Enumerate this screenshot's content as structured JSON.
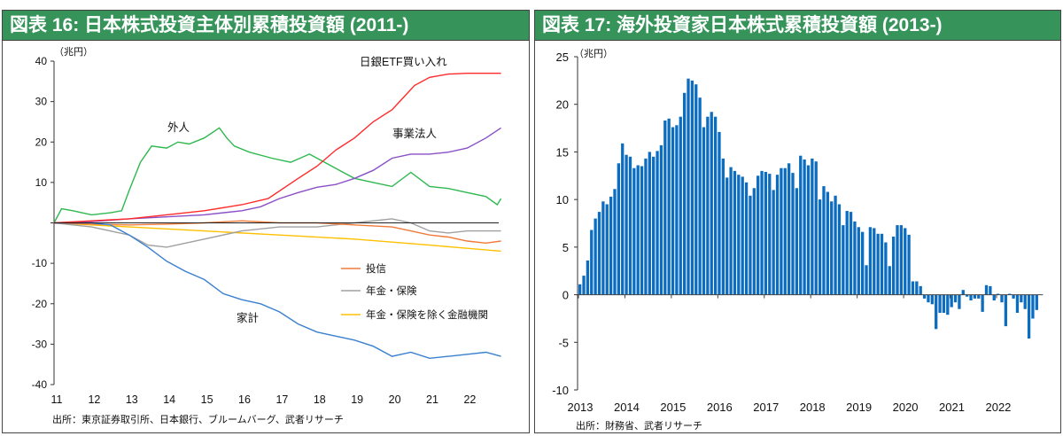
{
  "chart_data": [
    {
      "type": "line",
      "title": "図表 16: 日本株式投資主体別累積投資額 (2011-)",
      "unit_label": "（兆円）",
      "ylim": [
        -40,
        40
      ],
      "yticks": [
        40,
        30,
        20,
        10,
        0,
        -10,
        -20,
        -30,
        -40
      ],
      "ytick_labels": [
        "40",
        "30",
        "20",
        "10",
        "",
        "-10",
        "-20",
        "-30",
        "-40"
      ],
      "xlim": [
        2011,
        2023
      ],
      "xticks": [
        2011,
        2012,
        2013,
        2014,
        2015,
        2016,
        2017,
        2018,
        2019,
        2020,
        2021,
        2022
      ],
      "xtick_labels": [
        "11",
        "12",
        "13",
        "14",
        "15",
        "16",
        "17",
        "18",
        "19",
        "20",
        "21",
        "22"
      ],
      "source": "出所：東京証券取引所、日本銀行、ブルームバーグ、武者リサーチ",
      "series": [
        {
          "name": "日銀ETF買い入れ",
          "color": "#ff2a2a",
          "x": [
            2011,
            2012,
            2013,
            2014,
            2015,
            2016,
            2016.7,
            2017.5,
            2018,
            2018.5,
            2019,
            2019.5,
            2020,
            2020.3,
            2020.6,
            2021,
            2021.5,
            2022,
            2022.9
          ],
          "y": [
            0,
            0.5,
            1,
            2,
            3,
            4.5,
            6,
            11,
            14,
            18,
            21,
            25,
            28,
            31,
            34,
            36,
            36.8,
            37,
            37
          ]
        },
        {
          "name": "事業法人",
          "color": "#8a4fc6",
          "x": [
            2011,
            2012,
            2013,
            2014,
            2015,
            2016,
            2016.5,
            2017,
            2017.5,
            2018,
            2018.5,
            2019,
            2019.5,
            2020,
            2020.5,
            2021,
            2021.5,
            2022,
            2022.5,
            2022.9
          ],
          "y": [
            0,
            0.3,
            1,
            1.5,
            2,
            3,
            4,
            6,
            7.5,
            8.8,
            9.5,
            11,
            13,
            16,
            17,
            17,
            17.5,
            18.5,
            21,
            23.5
          ]
        },
        {
          "name": "外人",
          "color": "#2fb84f",
          "x": [
            2011,
            2011.2,
            2011.5,
            2012,
            2012.5,
            2012.8,
            2013,
            2013.3,
            2013.6,
            2014,
            2014.3,
            2014.6,
            2015,
            2015.4,
            2015.6,
            2015.8,
            2016.2,
            2016.8,
            2017.3,
            2017.8,
            2018.1,
            2018.6,
            2019,
            2019.5,
            2020,
            2020.5,
            2021,
            2021.5,
            2022,
            2022.5,
            2022.8,
            2022.9
          ],
          "y": [
            0,
            3.5,
            3,
            2,
            2.5,
            3,
            8,
            15,
            19,
            18.5,
            20,
            19.5,
            21,
            23.5,
            21,
            19,
            17.5,
            16,
            15,
            17,
            15.5,
            13,
            11,
            10,
            9,
            12.5,
            9,
            8.5,
            7.5,
            6.5,
            4.5,
            6
          ]
        },
        {
          "name": "家計",
          "color": "#3a80d0",
          "x": [
            2011,
            2012,
            2012.5,
            2013,
            2013.5,
            2014,
            2014.5,
            2015,
            2015.5,
            2016,
            2016.5,
            2017,
            2017.5,
            2018,
            2018.5,
            2019,
            2019.5,
            2020,
            2020.5,
            2021,
            2021.5,
            2022,
            2022.5,
            2022.9
          ],
          "y": [
            0,
            0,
            -0.5,
            -3,
            -6,
            -9.5,
            -12,
            -14,
            -17.5,
            -19,
            -20,
            -22,
            -25,
            -27,
            -28,
            -29,
            -30.5,
            -33,
            -32,
            -33.5,
            -33,
            -32.5,
            -32,
            -33
          ]
        },
        {
          "name": "投信",
          "color": "#f07a3a",
          "x": [
            2011,
            2012,
            2013,
            2014,
            2015,
            2016,
            2017,
            2018,
            2019,
            2020,
            2020.5,
            2021,
            2021.5,
            2022,
            2022.5,
            2022.9
          ],
          "y": [
            0,
            -0.3,
            -0.5,
            -0.3,
            0,
            0.5,
            0,
            0,
            -0.5,
            -1,
            -2,
            -3,
            -3.5,
            -4.5,
            -5,
            -4.5
          ]
        },
        {
          "name": "年金・保険",
          "color": "#a0a0a0",
          "x": [
            2011,
            2012,
            2013,
            2013.5,
            2014,
            2015,
            2016,
            2017,
            2018,
            2019,
            2020,
            2020.5,
            2021,
            2021.5,
            2022,
            2022.9
          ],
          "y": [
            0,
            -1,
            -3,
            -5.5,
            -6,
            -4,
            -2,
            -1,
            -1,
            0,
            1,
            0,
            -2,
            -2.5,
            -2,
            -2
          ]
        },
        {
          "name": "年金・保険を除く金融機関",
          "color": "#ffc000",
          "x": [
            2011,
            2013,
            2015,
            2017,
            2019,
            2021,
            2022,
            2022.9
          ],
          "y": [
            0,
            -1,
            -2,
            -3,
            -4,
            -5.5,
            -6.3,
            -7
          ]
        }
      ]
    },
    {
      "type": "bar",
      "title": "図表 17: 海外投資家日本株式累積投資額 (2013-)",
      "unit_label": "（兆円）",
      "ylim": [
        -10,
        25
      ],
      "yticks": [
        25,
        20,
        15,
        10,
        5,
        0,
        -5,
        -10
      ],
      "xtick_labels": [
        "2013",
        "2014",
        "2015",
        "2016",
        "2017",
        "2018",
        "2019",
        "2020",
        "2021",
        "2022"
      ],
      "start": "2013-01",
      "frequency": "monthly",
      "color": "#0b6cc0",
      "source": "出所：財務省、武者リサーチ",
      "values": [
        1.1,
        2.0,
        3.6,
        6.8,
        8.0,
        8.7,
        9.8,
        9.5,
        10.3,
        11.1,
        13.8,
        15.9,
        14.7,
        14.5,
        13.3,
        13.6,
        13.5,
        14.3,
        15.0,
        14.5,
        15.1,
        15.7,
        18.3,
        18.5,
        17.6,
        17.8,
        18.7,
        21.2,
        22.7,
        22.5,
        22.1,
        20.7,
        17.6,
        18.7,
        19.2,
        18.7,
        17.1,
        14.3,
        12.3,
        13.4,
        13.0,
        12.6,
        12.4,
        11.8,
        10.4,
        11.2,
        12.5,
        13.0,
        12.9,
        12.7,
        11.0,
        12.6,
        13.3,
        13.3,
        13.8,
        12.8,
        11.2,
        14.6,
        14.2,
        13.6,
        14.3,
        14.0,
        10.0,
        11.4,
        10.8,
        9.8,
        10.4,
        9.5,
        7.3,
        8.8,
        8.7,
        7.7,
        7.1,
        6.6,
        3.1,
        7.1,
        7.0,
        6.4,
        6.4,
        5.5,
        3.0,
        6.1,
        7.3,
        7.3,
        7.0,
        6.3,
        1.4,
        1.4,
        0.9,
        -0.4,
        -0.8,
        -1.0,
        -3.6,
        -1.9,
        -1.9,
        -2.1,
        -1.3,
        -0.8,
        -1.5,
        0.5,
        -0.2,
        -0.6,
        -0.4,
        -0.4,
        -1.8,
        1.0,
        0.9,
        -0.6,
        0.1,
        -0.8,
        -3.3,
        0.1,
        -0.4,
        -1.9,
        -0.8,
        -1.5,
        -4.6,
        -2.5,
        -1.6
      ]
    }
  ]
}
